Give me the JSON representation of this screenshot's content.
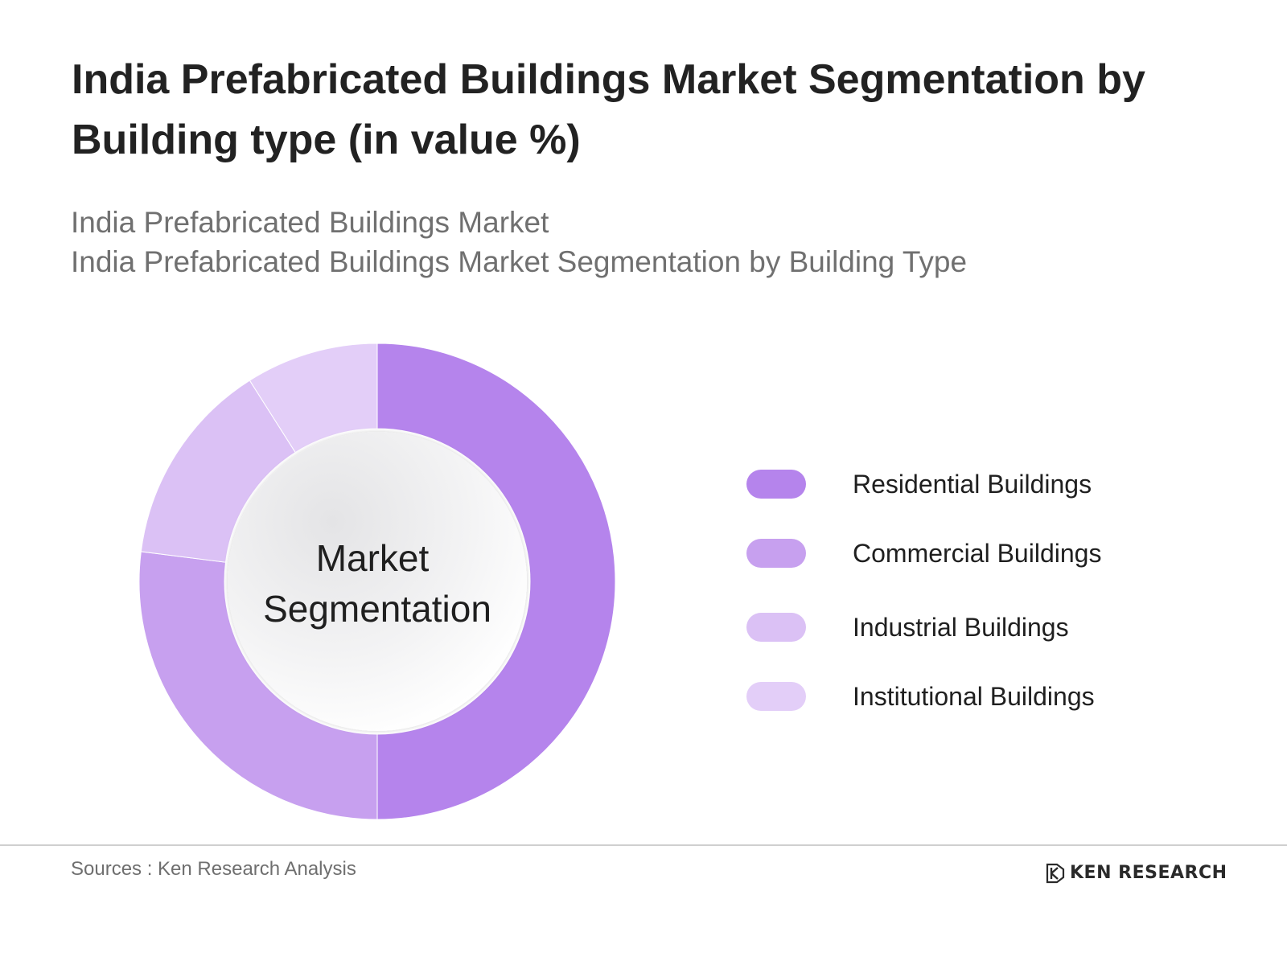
{
  "title": "India Prefabricated Buildings Market Segmentation by Building type (in value %)",
  "subtitle_lines": [
    "India Prefabricated Buildings Market",
    "India Prefabricated Buildings Market Segmentation by Building Type"
  ],
  "center_label_lines": [
    "Market",
    "Segmentation"
  ],
  "source": "Sources : Ken Research Analysis",
  "logo_text": "KEN RESEARCH",
  "chart_data": {
    "type": "pie",
    "variant": "donut",
    "categories": [
      "Residential Buildings",
      "Commercial Buildings",
      "Industrial Buildings",
      "Institutional Buildings"
    ],
    "values": [
      50,
      27,
      14,
      9
    ],
    "colors": [
      "#b584ec",
      "#c7a0ef",
      "#dbc1f5",
      "#e3cef8"
    ],
    "legend": "right"
  }
}
